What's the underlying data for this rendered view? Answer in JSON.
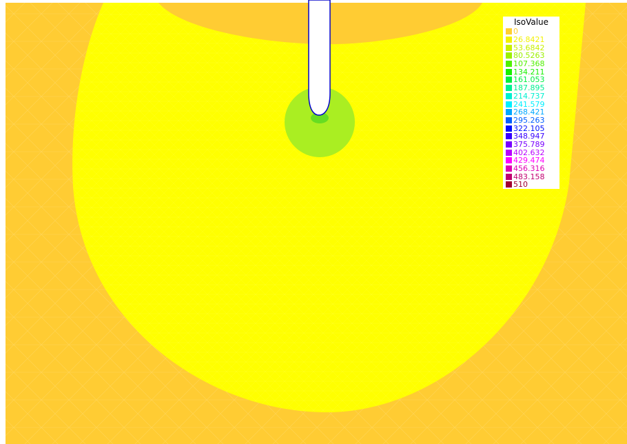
{
  "chart_data": {
    "type": "heatmap",
    "title": "",
    "legend": {
      "title": "IsoValue",
      "placement": "top-right",
      "levels": [
        {
          "value": "0",
          "color": "#ffd030"
        },
        {
          "value": "26.8421",
          "color": "#f2f200"
        },
        {
          "value": "53.6842",
          "color": "#c8f000"
        },
        {
          "value": "80.5263",
          "color": "#9cf000"
        },
        {
          "value": "107.368",
          "color": "#50f000"
        },
        {
          "value": "134.211",
          "color": "#18f000"
        },
        {
          "value": "161.053",
          "color": "#00f040"
        },
        {
          "value": "187.895",
          "color": "#00f090"
        },
        {
          "value": "214.737",
          "color": "#00f0d0"
        },
        {
          "value": "241.579",
          "color": "#00f0ff"
        },
        {
          "value": "268.421",
          "color": "#00a8ff"
        },
        {
          "value": "295.263",
          "color": "#0060ff"
        },
        {
          "value": "322.105",
          "color": "#0010ff"
        },
        {
          "value": "348.947",
          "color": "#3800ff"
        },
        {
          "value": "375.789",
          "color": "#7800ff"
        },
        {
          "value": "402.632",
          "color": "#b800ff"
        },
        {
          "value": "429.474",
          "color": "#ff00ff"
        },
        {
          "value": "456.316",
          "color": "#e000b0"
        },
        {
          "value": "483.158",
          "color": "#c00070"
        },
        {
          "value": "510",
          "color": "#a00030"
        }
      ]
    },
    "regions": [
      {
        "name": "outer domain",
        "value": "0",
        "color": "#ffcc33"
      },
      {
        "name": "large circle",
        "value": "26.8421",
        "color": "#ffff00"
      },
      {
        "name": "small circle",
        "value": "80.5263",
        "color": "#aaee22"
      },
      {
        "name": "probe",
        "color": "#ffffff",
        "outline": "#0000cc"
      }
    ]
  }
}
